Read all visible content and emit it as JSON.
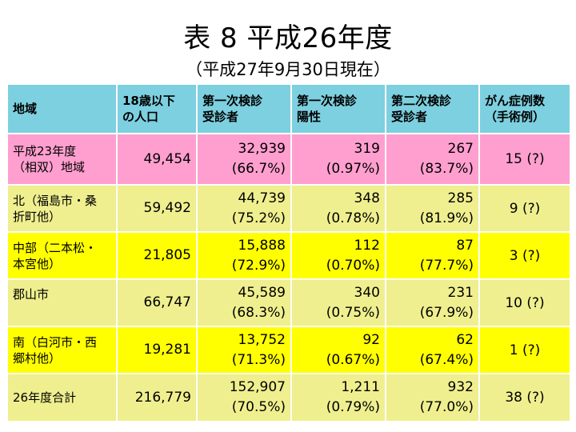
{
  "title": "表 8 平成26年度",
  "subtitle": "（平成27年9月30日現在）",
  "table": {
    "headers": [
      [
        "地域",
        ""
      ],
      [
        "18歳以下",
        "の人口"
      ],
      [
        "第一次検診",
        "受診者"
      ],
      [
        "第一次検診",
        "陽性"
      ],
      [
        "第二次検診",
        "受診者"
      ],
      [
        "がん症例数",
        "（手術例）"
      ]
    ],
    "rows": [
      {
        "region": [
          "平成23年度",
          "（相双）地域"
        ],
        "population": "49,454",
        "first_exam": [
          "32,939",
          "(66.7%)"
        ],
        "first_positive": [
          "319",
          "(0.97%)"
        ],
        "second_exam": [
          "267",
          "(83.7%)"
        ],
        "cancer": "15 (?)"
      },
      {
        "region": [
          "北（福島市・桑",
          "折町他）"
        ],
        "population": "59,492",
        "first_exam": [
          "44,739",
          "(75.2%)"
        ],
        "first_positive": [
          "348",
          "(0.78%)"
        ],
        "second_exam": [
          "285",
          "(81.9%)"
        ],
        "cancer": "9 (?)"
      },
      {
        "region": [
          "中部（二本松・",
          "本宮他）"
        ],
        "population": "21,805",
        "first_exam": [
          "15,888",
          "(72.9%)"
        ],
        "first_positive": [
          "112",
          "(0.70%)"
        ],
        "second_exam": [
          "87",
          "(77.7%)"
        ],
        "cancer": "3 (?)"
      },
      {
        "region": [
          "郡山市",
          ""
        ],
        "population": "66,747",
        "first_exam": [
          "45,589",
          "(68.3%)"
        ],
        "first_positive": [
          "340",
          "(0.75%)"
        ],
        "second_exam": [
          "231",
          "(67.9%)"
        ],
        "cancer": "10 (?)"
      },
      {
        "region": [
          "南（白河市・西",
          "郷村他）"
        ],
        "population": "19,281",
        "first_exam": [
          "13,752",
          "(71.3%)"
        ],
        "first_positive": [
          "92",
          "(0.67%)"
        ],
        "second_exam": [
          "62",
          "(67.4%)"
        ],
        "cancer": "1 (?)"
      },
      {
        "region": [
          "26年度合計",
          ""
        ],
        "population": "216,779",
        "first_exam": [
          "152,907",
          "(70.5%)"
        ],
        "first_positive": [
          "1,211",
          "(0.79%)"
        ],
        "second_exam": [
          "932",
          "(77.0%)"
        ],
        "cancer": "38 (?)"
      }
    ]
  },
  "colors": {
    "header": "#7dd0e0",
    "row_pink": "#ff9fcf",
    "row_lime": "#efef8f",
    "row_yellow": "#ffff00"
  }
}
